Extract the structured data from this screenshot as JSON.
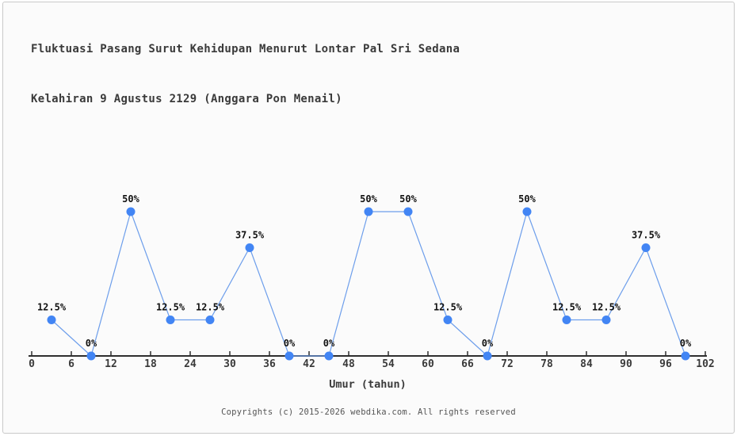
{
  "chart_data": {
    "type": "line",
    "title_line1": "Fluktuasi Pasang Surut Kehidupan Menurut Lontar Pal Sri Sedana",
    "title_line2": "Kelahiran 9 Agustus 2129 (Anggara Pon Menail)",
    "xlabel": "Umur (tahun)",
    "x": [
      3,
      9,
      15,
      21,
      27,
      33,
      39,
      45,
      51,
      57,
      63,
      69,
      75,
      81,
      87,
      93,
      99
    ],
    "values": [
      12.5,
      0,
      50,
      12.5,
      12.5,
      37.5,
      0,
      0,
      50,
      50,
      12.5,
      0,
      50,
      12.5,
      12.5,
      37.5,
      0
    ],
    "point_labels": [
      "12.5%",
      "0%",
      "50%",
      "12.5%",
      "12.5%",
      "37.5%",
      "0%",
      "0%",
      "50%",
      "50%",
      "12.5%",
      "0%",
      "50%",
      "12.5%",
      "12.5%",
      "37.5%",
      "0%"
    ],
    "x_ticks": [
      0,
      6,
      12,
      18,
      24,
      30,
      36,
      42,
      48,
      54,
      60,
      66,
      72,
      78,
      84,
      90,
      96,
      102
    ],
    "xlim": [
      0,
      102
    ],
    "ylim": [
      0,
      55
    ],
    "grid": false,
    "legend": "none",
    "line_color": "#6d9eeb",
    "marker_color": "#4285f4",
    "axis_color": "#2f2f2f",
    "point_label_color": "#111111",
    "tick_label_color": "#3a3a3a"
  },
  "footer": {
    "copyright": "Copyrights (c) 2015-2026 webdika.com. All rights reserved"
  }
}
